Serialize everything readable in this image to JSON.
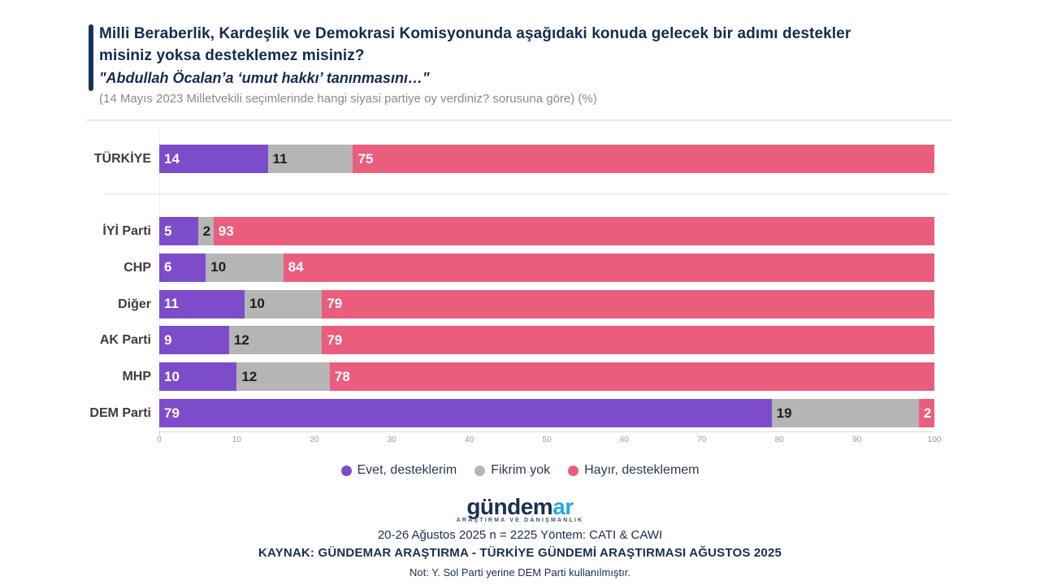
{
  "header": {
    "title": "Milli Beraberlik, Kardeşlik ve Demokrasi Komisyonunda aşağıdaki konuda gelecek bir adımı destekler misiniz yoksa desteklemez misiniz?",
    "subtitle": "\"Abdullah Öcalan’a ‘umut hakkı’ tanınmasını…\"",
    "note": "(14 Mayıs 2023 Milletvekili seçimlerinde hangi siyasi partiye oy verdiniz? sorusuna göre) (%)",
    "accent_color": "#16325c",
    "title_color": "#132b52"
  },
  "chart_data": {
    "type": "bar",
    "orientation": "horizontal-stacked",
    "categories": [
      "TÜRKİYE",
      "İYİ Parti",
      "CHP",
      "Diğer",
      "AK Parti",
      "MHP",
      "DEM Parti"
    ],
    "series": [
      {
        "name": "Evet, desteklerim",
        "color": "#7d4ccb",
        "label_color": "#ffffff",
        "values": [
          14,
          5,
          6,
          11,
          9,
          10,
          79
        ]
      },
      {
        "name": "Fikrim yok",
        "color": "#b5b5b5",
        "label_color": "#1f1f1f",
        "values": [
          11,
          2,
          10,
          10,
          12,
          12,
          19
        ]
      },
      {
        "name": "Hayır, desteklemem",
        "color": "#eb5d7d",
        "label_color": "#ffffff",
        "values": [
          75,
          93,
          84,
          79,
          79,
          78,
          2
        ]
      }
    ],
    "xlim": [
      0,
      100
    ],
    "xticks": [
      0,
      10,
      20,
      30,
      40,
      50,
      60,
      70,
      80,
      90,
      100
    ],
    "grid": "zero-line-only",
    "legend_position": "bottom",
    "value_labels": "inside-start"
  },
  "footer": {
    "logo_primary": "gündem",
    "logo_accent": "ar",
    "logo_subtext": "ARAŞTIRMA VE DANIŞMANLIK",
    "logo_navy": "#1b2f4e",
    "logo_blue": "#29a9e1",
    "methodology": "20-26 Ağustos 2025 n = 2225 Yöntem: CATI & CAWI",
    "source": "KAYNAK: GÜNDEMAR ARAŞTIRMA - TÜRKİYE GÜNDEMİ ARAŞTIRMASI AĞUSTOS 2025",
    "note": "Not: Y. Sol Parti yerine DEM Parti kullanılmıştır."
  }
}
